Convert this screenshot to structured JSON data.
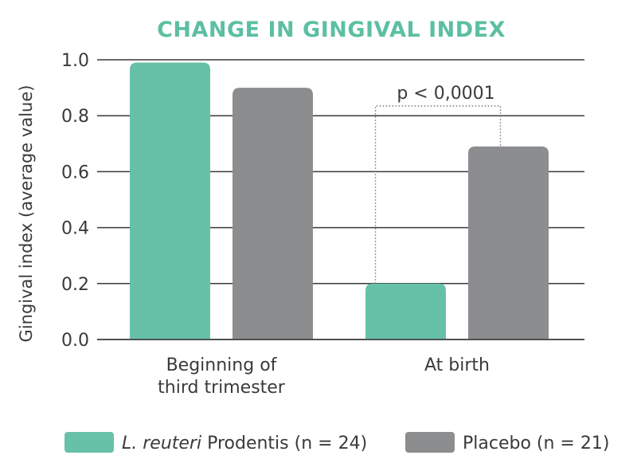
{
  "chart_data": {
    "type": "bar",
    "title": "CHANGE IN GINGIVAL INDEX",
    "ylabel": "Gingival index (average value)",
    "xlabel": "",
    "ylim": [
      0,
      1.0
    ],
    "yticks": [
      0.0,
      0.2,
      0.4,
      0.6,
      0.8,
      1.0
    ],
    "ytick_labels": [
      "0.0",
      "0.2",
      "0.4",
      "0.6",
      "0.8",
      "1.0"
    ],
    "grid": true,
    "categories": [
      [
        "Beginning of",
        "third trimester"
      ],
      [
        "At birth"
      ]
    ],
    "series": [
      {
        "name_italic": "L. reuteri",
        "name_rest": " Prodentis (n = 24)",
        "color": "#67c1a8",
        "values": [
          0.99,
          0.2
        ]
      },
      {
        "name_italic": "",
        "name_rest": "Placebo (n = 21)",
        "color": "#8c8d8f",
        "values": [
          0.9,
          0.69
        ]
      }
    ],
    "annotation": {
      "text": "p < 0,0001",
      "category_index": 1
    },
    "legend_position": "bottom"
  },
  "colors": {
    "title": "#5cbfa2",
    "text": "#3a3a3a",
    "grid": "#3a3a3a",
    "annotation_line": "#777777"
  }
}
